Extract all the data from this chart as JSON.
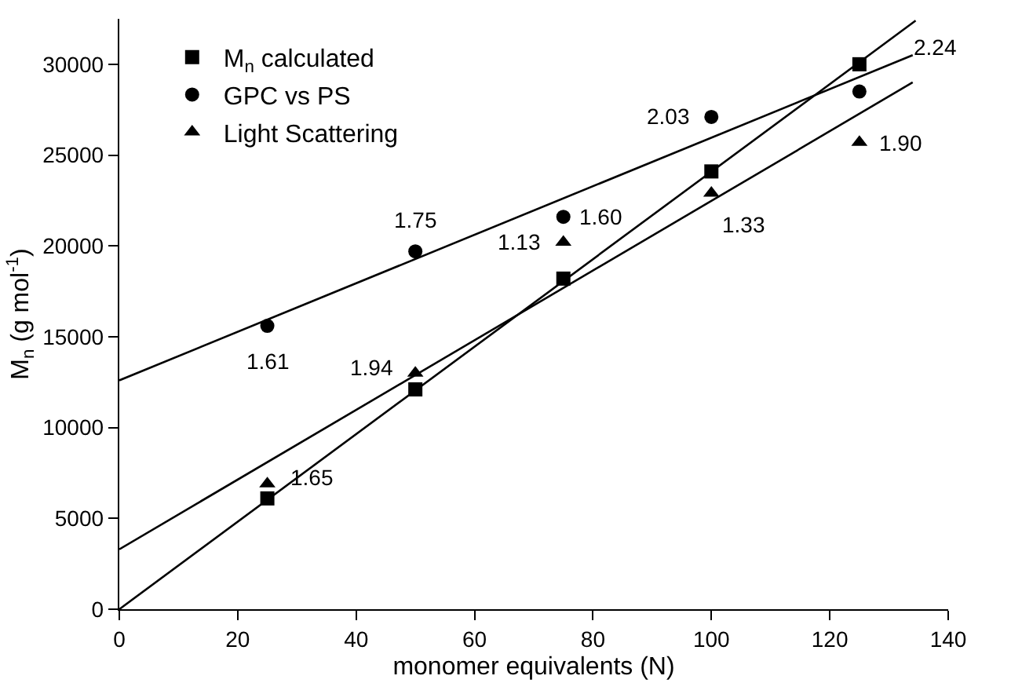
{
  "chart_data": {
    "type": "scatter",
    "xlabel": "monomer equivalents (N)",
    "ylabel": "M$_{n}$ (g mol$^{-1}$)",
    "xlim": [
      0,
      140
    ],
    "ylim": [
      0,
      32500
    ],
    "xticks": [
      0,
      20,
      40,
      60,
      80,
      100,
      120,
      140
    ],
    "yticks": [
      0,
      5000,
      10000,
      15000,
      20000,
      25000,
      30000
    ],
    "legend": "top left",
    "x": [
      25,
      50,
      75,
      100,
      125
    ],
    "series": [
      {
        "name": "M$_{n}$ calculated",
        "color": "#000000",
        "marker": "square",
        "values": [
          6100,
          12100,
          18200,
          24100,
          30000
        ]
      },
      {
        "name": "GPC vs PS",
        "color": "#000000",
        "marker": "circle",
        "values": [
          15600,
          19700,
          21600,
          27100,
          28500
        ]
      },
      {
        "name": "Light Scattering",
        "color": "#000000",
        "marker": "triangle",
        "values": [
          6900,
          13000,
          20200,
          22900,
          25700
        ]
      },
      {
        "type": "line",
        "color": "#000000",
        "x": [
          0,
          134.5
        ],
        "values": [
          0,
          32400
        ]
      },
      {
        "type": "line",
        "color": "#000000",
        "x": [
          0,
          134
        ],
        "values": [
          12600,
          30500
        ]
      },
      {
        "type": "line",
        "color": "#000000",
        "x": [
          0,
          134
        ],
        "values": [
          3300,
          29000
        ]
      }
    ],
    "annotations": [
      {
        "text": "1.61",
        "x": 25,
        "y": 15600
      },
      {
        "text": "1.75",
        "x": 50,
        "y": 19700
      },
      {
        "text": "1.60",
        "x": 75,
        "y": 21600
      },
      {
        "text": "2.03",
        "x": 100,
        "y": 27100
      },
      {
        "text": "2.24",
        "x": 125,
        "y": 28500
      },
      {
        "text": "1.65",
        "x": 25,
        "y": 6900
      },
      {
        "text": "1.94",
        "x": 50,
        "y": 13000
      },
      {
        "text": "1.13",
        "x": 75,
        "y": 20200
      },
      {
        "text": "1.33",
        "x": 100,
        "y": 22900
      },
      {
        "text": "1.90",
        "x": 125,
        "y": 25700
      }
    ]
  }
}
